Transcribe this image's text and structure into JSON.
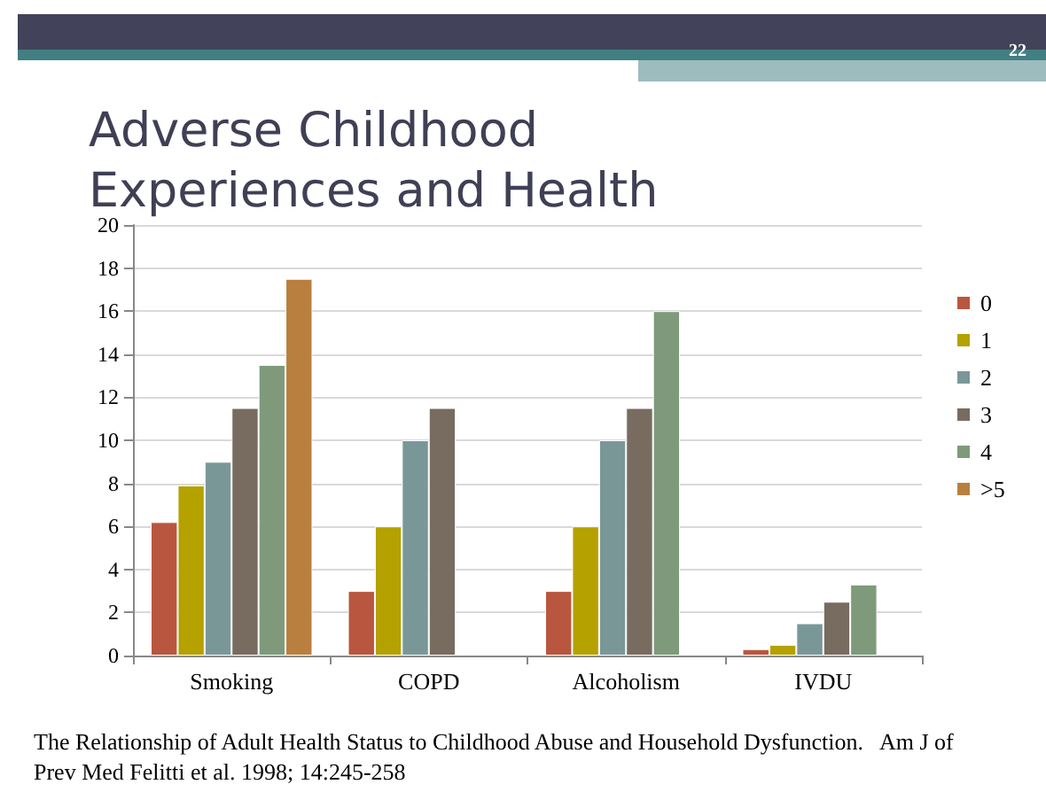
{
  "chart_data": {
    "type": "bar",
    "title": "Adverse Childhood Experiences and Health",
    "categories": [
      "Smoking",
      "COPD",
      "Alcoholism",
      "IVDU"
    ],
    "series": [
      {
        "name": "0",
        "color": "#b9563f",
        "values": [
          6.2,
          3,
          3,
          0.3
        ]
      },
      {
        "name": "1",
        "color": "#b5a100",
        "values": [
          7.9,
          6,
          6,
          0.5
        ]
      },
      {
        "name": "2",
        "color": "#7a9798",
        "values": [
          9,
          10,
          10,
          1.5
        ]
      },
      {
        "name": "3",
        "color": "#786b60",
        "values": [
          11.5,
          11.5,
          11.5,
          2.5
        ]
      },
      {
        "name": "4",
        "color": "#7e9a7b",
        "values": [
          13.5,
          null,
          16,
          3.3
        ]
      },
      {
        "name": ">5",
        "color": "#b97f3f",
        "values": [
          17.5,
          null,
          null,
          null
        ]
      }
    ],
    "ylim": [
      0,
      20
    ],
    "yticks": [
      0,
      2,
      4,
      6,
      8,
      10,
      12,
      14,
      16,
      18,
      20
    ],
    "grid": "y",
    "legend": "right",
    "annotations": [
      "22",
      "The Relationship of Adult Health Status to Childhood Abuse and Household Dysfunction.   Am J of Prev Med Felitti et al. 1998; 14:245-258"
    ]
  }
}
